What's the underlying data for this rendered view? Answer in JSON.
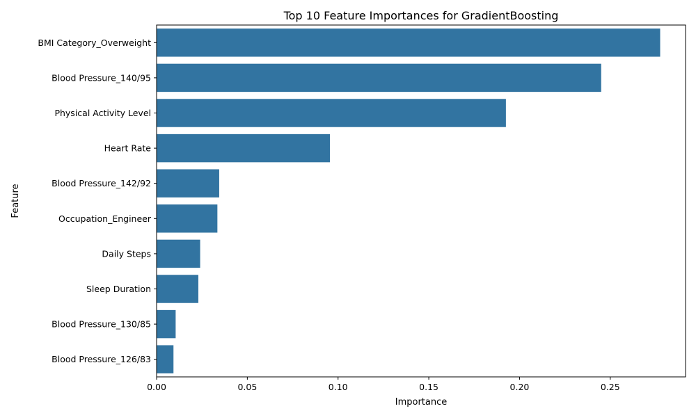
{
  "chart_data": {
    "type": "bar",
    "orientation": "horizontal",
    "title": "Top 10 Feature Importances for GradientBoosting",
    "xlabel": "Importance",
    "ylabel": "Feature",
    "xlim": [
      0,
      0.2915
    ],
    "xticks": [
      0.0,
      0.05,
      0.1,
      0.15,
      0.2,
      0.25
    ],
    "xtick_labels": [
      "0.00",
      "0.05",
      "0.10",
      "0.15",
      "0.20",
      "0.25"
    ],
    "grid": false,
    "bar_color": "#3274a1",
    "categories": [
      "BMI Category_Overweight",
      "Blood Pressure_140/95",
      "Physical Activity Level",
      "Heart Rate",
      "Blood Pressure_142/92",
      "Occupation_Engineer",
      "Daily Steps",
      "Sleep Duration",
      "Blood Pressure_130/85",
      "Blood Pressure_126/83"
    ],
    "values": [
      0.2775,
      0.245,
      0.1925,
      0.0955,
      0.0345,
      0.0335,
      0.024,
      0.023,
      0.0105,
      0.0093
    ]
  }
}
